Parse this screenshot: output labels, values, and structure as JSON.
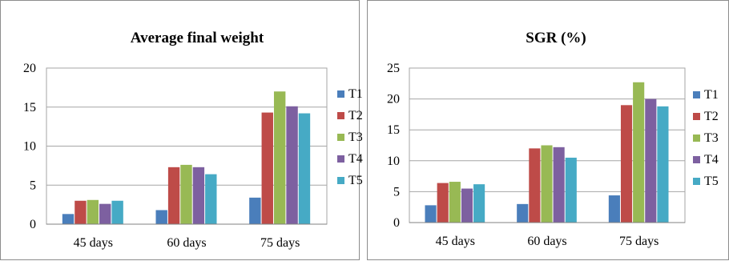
{
  "chart_data": [
    {
      "type": "bar",
      "title": "Average final weight",
      "categories": [
        "45 days",
        "60 days",
        "75 days"
      ],
      "ylim": [
        0,
        20
      ],
      "yticks": [
        "0",
        "5",
        "10",
        "15",
        "20"
      ],
      "grid": true,
      "legend_position": "right",
      "series": [
        {
          "name": "T1",
          "color": "#4a7ebb",
          "values": [
            1.3,
            1.8,
            3.4
          ]
        },
        {
          "name": "T2",
          "color": "#be4b48",
          "values": [
            3.0,
            7.3,
            14.3
          ]
        },
        {
          "name": "T3",
          "color": "#98b954",
          "values": [
            3.1,
            7.6,
            17.0
          ]
        },
        {
          "name": "T4",
          "color": "#7d60a0",
          "values": [
            2.6,
            7.3,
            15.1
          ]
        },
        {
          "name": "T5",
          "color": "#46aac5",
          "values": [
            3.0,
            6.4,
            14.2
          ]
        }
      ]
    },
    {
      "type": "bar",
      "title": "SGR (%)",
      "categories": [
        "45 days",
        "60 days",
        "75 days"
      ],
      "ylim": [
        0,
        25
      ],
      "yticks": [
        "0",
        "5",
        "10",
        "15",
        "20",
        "25"
      ],
      "grid": true,
      "legend_position": "right",
      "series": [
        {
          "name": "T1",
          "color": "#4a7ebb",
          "values": [
            2.8,
            3.0,
            4.4
          ]
        },
        {
          "name": "T2",
          "color": "#be4b48",
          "values": [
            6.4,
            12.0,
            19.0
          ]
        },
        {
          "name": "T3",
          "color": "#98b954",
          "values": [
            6.6,
            12.5,
            22.7
          ]
        },
        {
          "name": "T4",
          "color": "#7d60a0",
          "values": [
            5.5,
            12.2,
            20.0
          ]
        },
        {
          "name": "T5",
          "color": "#46aac5",
          "values": [
            6.2,
            10.5,
            18.8
          ]
        }
      ]
    }
  ]
}
